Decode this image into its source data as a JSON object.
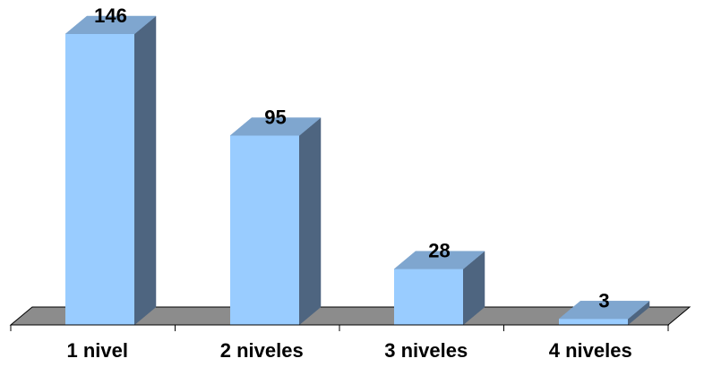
{
  "chart_data": {
    "type": "bar",
    "style": "3d-column",
    "categories": [
      "1 nivel",
      "2 niveles",
      "3 niveles",
      "4 niveles"
    ],
    "values": [
      146,
      95,
      28,
      3
    ],
    "data_labels": [
      "146",
      "95",
      "28",
      "3"
    ],
    "title": "",
    "xlabel": "",
    "ylabel": "",
    "ylim": [
      0,
      146
    ],
    "grid": false,
    "legend": "none",
    "colors": {
      "bar_front": "#99ccff",
      "bar_top": "#7fa6cf",
      "bar_side": "#4e6580",
      "floor": "#8c8c8c",
      "outline": "#000000"
    }
  }
}
